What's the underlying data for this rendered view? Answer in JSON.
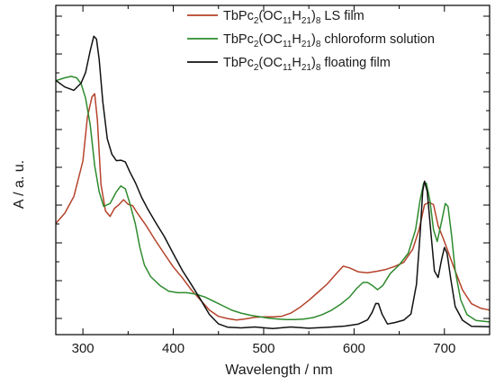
{
  "chart_data": {
    "type": "line",
    "title": "",
    "xlabel": "Wavelength / nm",
    "ylabel": "A / a. u.",
    "xlim": [
      270,
      750
    ],
    "ylim": [
      0,
      1
    ],
    "x_ticks": [
      300,
      400,
      500,
      600,
      700
    ],
    "y_ticks_labeled": false,
    "grid": false,
    "legend_position": "top-right",
    "legend": [
      {
        "base": "TbPc",
        "sub1": "2",
        "mid1": "(OC",
        "sub2": "11",
        "mid2": "H",
        "sub3": "21",
        "mid3": ")",
        "sub4": "8",
        "tail": " LS film"
      },
      {
        "base": "TbPc",
        "sub1": "2",
        "mid1": "(OC",
        "sub2": "11",
        "mid2": "H",
        "sub3": "21",
        "mid3": ")",
        "sub4": "8",
        "tail": " chloroform solution"
      },
      {
        "base": "TbPc",
        "sub1": "2",
        "mid1": "(OC",
        "sub2": "11",
        "mid2": "H",
        "sub3": "21",
        "mid3": ")",
        "sub4": "8",
        "tail": " floating film"
      }
    ],
    "series": [
      {
        "color": "#b5432b",
        "points": [
          [
            270,
            0.36
          ],
          [
            280,
            0.4
          ],
          [
            290,
            0.46
          ],
          [
            300,
            0.58
          ],
          [
            305,
            0.72
          ],
          [
            310,
            0.8
          ],
          [
            313,
            0.81
          ],
          [
            316,
            0.72
          ],
          [
            320,
            0.5
          ],
          [
            325,
            0.4
          ],
          [
            330,
            0.39
          ],
          [
            335,
            0.41
          ],
          [
            340,
            0.43
          ],
          [
            345,
            0.44
          ],
          [
            350,
            0.43
          ],
          [
            355,
            0.42
          ],
          [
            360,
            0.4
          ],
          [
            370,
            0.36
          ],
          [
            380,
            0.31
          ],
          [
            390,
            0.26
          ],
          [
            400,
            0.21
          ],
          [
            410,
            0.17
          ],
          [
            420,
            0.13
          ],
          [
            430,
            0.1
          ],
          [
            440,
            0.07
          ],
          [
            450,
            0.05
          ],
          [
            460,
            0.04
          ],
          [
            470,
            0.03
          ],
          [
            480,
            0.03
          ],
          [
            490,
            0.035
          ],
          [
            500,
            0.04
          ],
          [
            510,
            0.045
          ],
          [
            520,
            0.05
          ],
          [
            530,
            0.06
          ],
          [
            540,
            0.075
          ],
          [
            550,
            0.095
          ],
          [
            560,
            0.12
          ],
          [
            570,
            0.15
          ],
          [
            580,
            0.19
          ],
          [
            588,
            0.21
          ],
          [
            595,
            0.205
          ],
          [
            605,
            0.19
          ],
          [
            615,
            0.19
          ],
          [
            625,
            0.2
          ],
          [
            635,
            0.21
          ],
          [
            645,
            0.22
          ],
          [
            655,
            0.23
          ],
          [
            665,
            0.27
          ],
          [
            672,
            0.34
          ],
          [
            678,
            0.42
          ],
          [
            683,
            0.44
          ],
          [
            688,
            0.42
          ],
          [
            693,
            0.36
          ],
          [
            698,
            0.31
          ],
          [
            703,
            0.28
          ],
          [
            710,
            0.22
          ],
          [
            720,
            0.14
          ],
          [
            730,
            0.09
          ],
          [
            740,
            0.07
          ],
          [
            750,
            0.06
          ]
        ]
      },
      {
        "color": "#2e8b2e",
        "points": [
          [
            270,
            0.85
          ],
          [
            280,
            0.86
          ],
          [
            287,
            0.865
          ],
          [
            293,
            0.86
          ],
          [
            298,
            0.84
          ],
          [
            303,
            0.79
          ],
          [
            308,
            0.7
          ],
          [
            313,
            0.56
          ],
          [
            318,
            0.47
          ],
          [
            323,
            0.42
          ],
          [
            330,
            0.43
          ],
          [
            337,
            0.47
          ],
          [
            342,
            0.49
          ],
          [
            347,
            0.48
          ],
          [
            352,
            0.43
          ],
          [
            358,
            0.36
          ],
          [
            363,
            0.28
          ],
          [
            368,
            0.22
          ],
          [
            375,
            0.18
          ],
          [
            385,
            0.15
          ],
          [
            395,
            0.13
          ],
          [
            405,
            0.125
          ],
          [
            415,
            0.125
          ],
          [
            425,
            0.12
          ],
          [
            435,
            0.11
          ],
          [
            445,
            0.095
          ],
          [
            455,
            0.08
          ],
          [
            465,
            0.065
          ],
          [
            475,
            0.055
          ],
          [
            485,
            0.048
          ],
          [
            495,
            0.043
          ],
          [
            505,
            0.038
          ],
          [
            515,
            0.035
          ],
          [
            525,
            0.033
          ],
          [
            535,
            0.033
          ],
          [
            545,
            0.035
          ],
          [
            555,
            0.04
          ],
          [
            565,
            0.05
          ],
          [
            575,
            0.065
          ],
          [
            585,
            0.085
          ],
          [
            595,
            0.11
          ],
          [
            603,
            0.14
          ],
          [
            610,
            0.16
          ],
          [
            615,
            0.16
          ],
          [
            620,
            0.15
          ],
          [
            626,
            0.135
          ],
          [
            632,
            0.15
          ],
          [
            640,
            0.19
          ],
          [
            650,
            0.22
          ],
          [
            660,
            0.26
          ],
          [
            668,
            0.34
          ],
          [
            673,
            0.44
          ],
          [
            677,
            0.5
          ],
          [
            680,
            0.5
          ],
          [
            684,
            0.44
          ],
          [
            688,
            0.34
          ],
          [
            692,
            0.3
          ],
          [
            697,
            0.37
          ],
          [
            701,
            0.43
          ],
          [
            704,
            0.42
          ],
          [
            708,
            0.32
          ],
          [
            712,
            0.2
          ],
          [
            718,
            0.1
          ],
          [
            725,
            0.05
          ],
          [
            735,
            0.03
          ],
          [
            750,
            0.025
          ]
        ]
      },
      {
        "color": "#111111",
        "points": [
          [
            270,
            0.85
          ],
          [
            280,
            0.83
          ],
          [
            290,
            0.82
          ],
          [
            298,
            0.84
          ],
          [
            303,
            0.88
          ],
          [
            308,
            0.95
          ],
          [
            312,
            1.0
          ],
          [
            315,
            0.99
          ],
          [
            318,
            0.92
          ],
          [
            322,
            0.78
          ],
          [
            327,
            0.65
          ],
          [
            332,
            0.6
          ],
          [
            337,
            0.575
          ],
          [
            342,
            0.58
          ],
          [
            347,
            0.57
          ],
          [
            352,
            0.54
          ],
          [
            358,
            0.5
          ],
          [
            365,
            0.45
          ],
          [
            372,
            0.41
          ],
          [
            380,
            0.37
          ],
          [
            390,
            0.32
          ],
          [
            400,
            0.26
          ],
          [
            410,
            0.2
          ],
          [
            420,
            0.15
          ],
          [
            430,
            0.1
          ],
          [
            440,
            0.05
          ],
          [
            450,
            0.02
          ],
          [
            460,
            0.01
          ],
          [
            475,
            0.005
          ],
          [
            490,
            0.005
          ],
          [
            510,
            0.005
          ],
          [
            530,
            0.005
          ],
          [
            550,
            0.005
          ],
          [
            570,
            0.006
          ],
          [
            590,
            0.01
          ],
          [
            605,
            0.015
          ],
          [
            615,
            0.03
          ],
          [
            620,
            0.06
          ],
          [
            624,
            0.09
          ],
          [
            627,
            0.09
          ],
          [
            631,
            0.05
          ],
          [
            637,
            0.02
          ],
          [
            645,
            0.02
          ],
          [
            655,
            0.03
          ],
          [
            663,
            0.05
          ],
          [
            669,
            0.15
          ],
          [
            673,
            0.32
          ],
          [
            676,
            0.47
          ],
          [
            678,
            0.505
          ],
          [
            681,
            0.47
          ],
          [
            685,
            0.33
          ],
          [
            689,
            0.2
          ],
          [
            693,
            0.18
          ],
          [
            697,
            0.24
          ],
          [
            700,
            0.28
          ],
          [
            703,
            0.26
          ],
          [
            707,
            0.17
          ],
          [
            712,
            0.08
          ],
          [
            720,
            0.03
          ],
          [
            730,
            0.012
          ],
          [
            750,
            0.008
          ]
        ]
      }
    ]
  }
}
